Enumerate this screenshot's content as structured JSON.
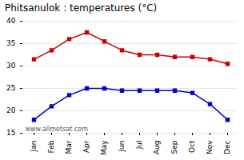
{
  "chart_data": {
    "type": "line",
    "title": "Phitsanulok : temperatures (°C)",
    "categories": [
      "Jan",
      "Feb",
      "Mar",
      "Apr",
      "May",
      "Jun",
      "Jul",
      "Aug",
      "Sep",
      "Oct",
      "Nov",
      "Dec"
    ],
    "series": [
      {
        "color": "#cc0000",
        "values": [
          31.5,
          33.5,
          36.0,
          37.5,
          35.5,
          33.5,
          32.5,
          32.5,
          32.0,
          32.0,
          31.5,
          30.5
        ]
      },
      {
        "color": "#0000cc",
        "values": [
          18.0,
          21.0,
          23.5,
          25.0,
          25.0,
          24.5,
          24.5,
          24.5,
          24.5,
          24.0,
          21.5,
          18.0
        ]
      }
    ],
    "ylim": [
      15,
      40
    ],
    "yticks": [
      15,
      20,
      25,
      30,
      35,
      40
    ],
    "grid": "y",
    "marker": "square",
    "annotations": [
      "www.allmetsat.com"
    ]
  }
}
